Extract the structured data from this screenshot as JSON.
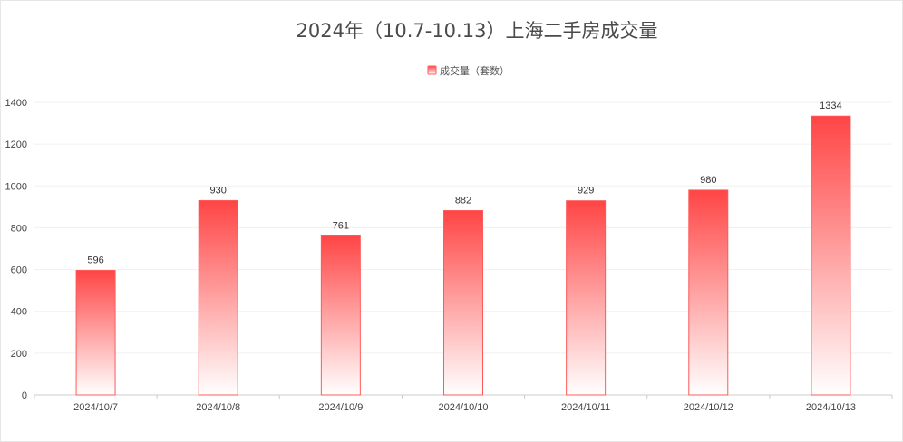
{
  "chart_data": {
    "type": "bar",
    "title": "2024年（10.7-10.13）上海二手房成交量",
    "legend": {
      "label": "成交量（套数）",
      "position": "top-center"
    },
    "categories": [
      "2024/10/7",
      "2024/10/8",
      "2024/10/9",
      "2024/10/10",
      "2024/10/11",
      "2024/10/12",
      "2024/10/13"
    ],
    "series": [
      {
        "name": "成交量（套数）",
        "values": [
          596,
          930,
          761,
          882,
          929,
          980,
          1334
        ]
      }
    ],
    "ylim": [
      0,
      1400
    ],
    "yticks": [
      0,
      200,
      400,
      600,
      800,
      1000,
      1200,
      1400
    ],
    "grid": true,
    "colors": {
      "bar_top": "#ff4545",
      "bar_bottom": "#ffffff",
      "bar_edge": "#ff5a5a"
    },
    "data_labels": true
  }
}
